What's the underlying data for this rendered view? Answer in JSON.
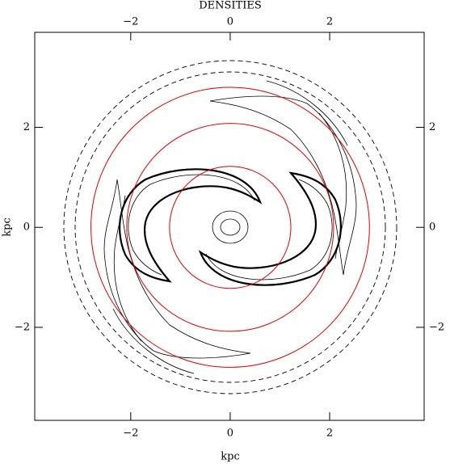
{
  "chart_data": {
    "type": "contour",
    "title": "DENSITIES",
    "x_label": "kpc",
    "y_label": "kpc",
    "xlim": [
      -3.93,
      3.9
    ],
    "ylim": [
      -3.86,
      3.9
    ],
    "xticks": [
      {
        "value": -2,
        "label": "−2"
      },
      0,
      2
    ],
    "yticks": [
      {
        "value": -2,
        "label": "−2"
      },
      0,
      2
    ],
    "circles": {
      "color": "#e00000",
      "radii": [
        1.22,
        2.08,
        2.8
      ]
    }
  }
}
